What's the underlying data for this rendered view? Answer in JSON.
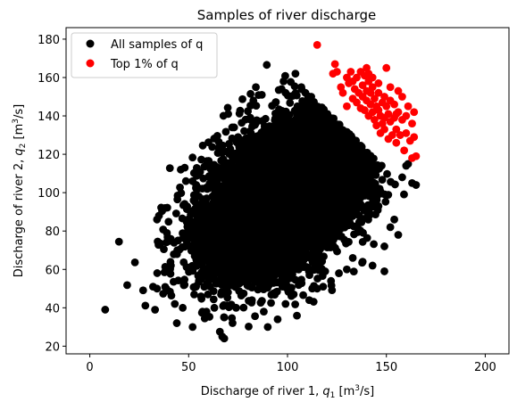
{
  "chart_data": {
    "type": "scatter",
    "title": "Samples of river discharge",
    "xlabel_main": "Discharge of river 1, ",
    "xlabel_var": "q",
    "xlabel_sub": "1",
    "xlabel_unit_pre": " [m",
    "xlabel_unit_sup": "3",
    "xlabel_unit_post": "/s]",
    "ylabel_main": "Discharge of river 2, ",
    "ylabel_var": "q",
    "ylabel_sub": "2",
    "ylabel_unit_pre": " [m",
    "ylabel_unit_sup": "3",
    "ylabel_unit_post": "/s]",
    "xlim": [
      -12,
      212
    ],
    "ylim": [
      16,
      186
    ],
    "xticks": [
      0,
      50,
      100,
      150,
      200
    ],
    "yticks": [
      20,
      40,
      60,
      80,
      100,
      120,
      140,
      160,
      180
    ],
    "grid": false,
    "legend_position": "upper-left",
    "series": [
      {
        "name": "All samples of q",
        "color": "#000000",
        "cloud": {
          "count": 9900,
          "mean": [
            100,
            100
          ],
          "std": [
            20,
            20
          ],
          "correlation": 0.5,
          "seed": 7
        },
        "points": [
          [
            32,
            51
          ],
          [
            34,
            50
          ],
          [
            33,
            39
          ],
          [
            34,
            86
          ],
          [
            35,
            88
          ],
          [
            38,
            92
          ],
          [
            39,
            79
          ],
          [
            41,
            62
          ],
          [
            43,
            42
          ],
          [
            44,
            32
          ],
          [
            46,
            112
          ],
          [
            48,
            113
          ],
          [
            47,
            40
          ],
          [
            52,
            106
          ],
          [
            52,
            30
          ],
          [
            57,
            38
          ],
          [
            59,
            38
          ],
          [
            63,
            40
          ],
          [
            67,
            25
          ],
          [
            68,
            24
          ],
          [
            68,
            35
          ],
          [
            74,
            40
          ],
          [
            70,
            141
          ],
          [
            72,
            134
          ],
          [
            75,
            128
          ],
          [
            75,
            129
          ],
          [
            90,
            30
          ],
          [
            95,
            34
          ],
          [
            84,
            155
          ],
          [
            87,
            151
          ],
          [
            94,
            147
          ],
          [
            97,
            154
          ],
          [
            98,
            158
          ],
          [
            99,
            152
          ],
          [
            104,
            162
          ],
          [
            105,
            145
          ],
          [
            107,
            155
          ],
          [
            110,
            148
          ],
          [
            112,
            150
          ],
          [
            75,
            127
          ],
          [
            76,
            121
          ],
          [
            73,
            134
          ],
          [
            82,
            44
          ],
          [
            88,
            38
          ],
          [
            99,
            42
          ],
          [
            111,
            44
          ],
          [
            115,
            50
          ],
          [
            118,
            51
          ],
          [
            122,
            54
          ],
          [
            126,
            58
          ],
          [
            130,
            60
          ],
          [
            133,
            66
          ],
          [
            138,
            64
          ],
          [
            143,
            62
          ],
          [
            149,
            59
          ],
          [
            154,
            86
          ],
          [
            156,
            78
          ],
          [
            158,
            108
          ],
          [
            160,
            114
          ],
          [
            163,
            105
          ],
          [
            165,
            104
          ],
          [
            146,
            93
          ],
          [
            149,
            72
          ],
          [
            152,
            82
          ],
          [
            161,
            115
          ]
        ]
      },
      {
        "name": "Top 1% of q",
        "color": "#ff0000",
        "points": [
          [
            115,
            177
          ],
          [
            123,
            162
          ],
          [
            124,
            167
          ],
          [
            125,
            163
          ],
          [
            127,
            155
          ],
          [
            128,
            152
          ],
          [
            130,
            160
          ],
          [
            130,
            145
          ],
          [
            131,
            157
          ],
          [
            132,
            163
          ],
          [
            133,
            149
          ],
          [
            133,
            158
          ],
          [
            134,
            154
          ],
          [
            135,
            160
          ],
          [
            135,
            147
          ],
          [
            136,
            152
          ],
          [
            137,
            163
          ],
          [
            137,
            144
          ],
          [
            138,
            156
          ],
          [
            138,
            150
          ],
          [
            139,
            161
          ],
          [
            139,
            143
          ],
          [
            140,
            153
          ],
          [
            140,
            148
          ],
          [
            141,
            158
          ],
          [
            141,
            140
          ],
          [
            142,
            146
          ],
          [
            142,
            152
          ],
          [
            143,
            142
          ],
          [
            143,
            155
          ],
          [
            144,
            138
          ],
          [
            144,
            149
          ],
          [
            145,
            145
          ],
          [
            145,
            135
          ],
          [
            146,
            143
          ],
          [
            146,
            152
          ],
          [
            147,
            131
          ],
          [
            147,
            140
          ],
          [
            148,
            136
          ],
          [
            148,
            147
          ],
          [
            149,
            139
          ],
          [
            149,
            133
          ],
          [
            150,
            165
          ],
          [
            150,
            145
          ],
          [
            151,
            128
          ],
          [
            151,
            141
          ],
          [
            152,
            137
          ],
          [
            152,
            148
          ],
          [
            153,
            130
          ],
          [
            154,
            139
          ],
          [
            154,
            146
          ],
          [
            155,
            133
          ],
          [
            155,
            126
          ],
          [
            156,
            153
          ],
          [
            156,
            142
          ],
          [
            157,
            130
          ],
          [
            158,
            150
          ],
          [
            158,
            138
          ],
          [
            159,
            122
          ],
          [
            160,
            140
          ],
          [
            160,
            131
          ],
          [
            161,
            145
          ],
          [
            162,
            127
          ],
          [
            163,
            136
          ],
          [
            163,
            118
          ],
          [
            164,
            142
          ],
          [
            164,
            129
          ],
          [
            165,
            119
          ],
          [
            140,
            165
          ],
          [
            141,
            162
          ],
          [
            143,
            160
          ],
          [
            146,
            157
          ],
          [
            149,
            150
          ],
          [
            152,
            155
          ],
          [
            155,
            141
          ]
        ]
      }
    ]
  }
}
